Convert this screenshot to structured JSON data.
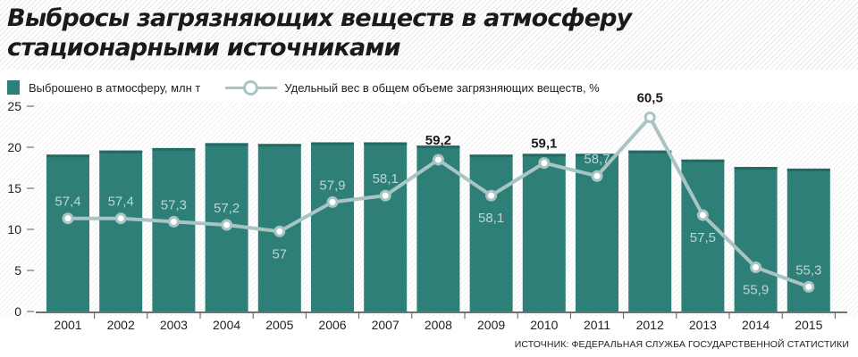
{
  "title": {
    "line1": "Выбросы загрязняющих веществ в атмосферу",
    "line2": "стационарными источниками"
  },
  "legend": {
    "bars": "Выброшено в атмосферу, млн т",
    "line": "Удельный вес в общем объеме загрязняющих веществ, %"
  },
  "source": "ИСТОЧНИК: ФЕДЕРАЛЬНАЯ СЛУЖБА ГОСУДАРСТВЕННОЙ СТАТИСТИКИ",
  "colors": {
    "bar": "#2e7f78",
    "bar_top": "#246a64",
    "line": "#a9c5c3",
    "line_label": "#bdd5d3",
    "axis_text": "#222222"
  },
  "chart_data": {
    "type": "bar",
    "categories": [
      "2001",
      "2002",
      "2003",
      "2004",
      "2005",
      "2006",
      "2007",
      "2008",
      "2009",
      "2010",
      "2011",
      "2012",
      "2013",
      "2014",
      "2015"
    ],
    "series": [
      {
        "name": "Выброшено в атмосферу, млн т",
        "type": "bar",
        "axis": "left",
        "values": [
          19.1,
          19.6,
          19.9,
          20.5,
          20.4,
          20.6,
          20.6,
          20.2,
          19.1,
          19.2,
          19.2,
          19.6,
          18.5,
          17.6,
          17.4
        ]
      },
      {
        "name": "Удельный вес в общем объеме загрязняющих веществ, %",
        "type": "line",
        "axis": "right",
        "values": [
          57.4,
          57.4,
          57.3,
          57.2,
          57,
          57.9,
          58.1,
          59.2,
          58.1,
          59.1,
          58.7,
          60.5,
          57.5,
          55.9,
          55.3
        ],
        "labels": [
          "57,4",
          "57,4",
          "57,3",
          "57,2",
          "57",
          "57,9",
          "58,1",
          "59,2",
          "58,1",
          "59,1",
          "58,7",
          "60,5",
          "57,5",
          "55,9",
          "55,3"
        ]
      }
    ],
    "yticks": [
      "0",
      "5",
      "10",
      "15",
      "20",
      "25"
    ],
    "ylim": [
      0,
      25
    ],
    "grid": false,
    "legend_position": "top-left"
  }
}
